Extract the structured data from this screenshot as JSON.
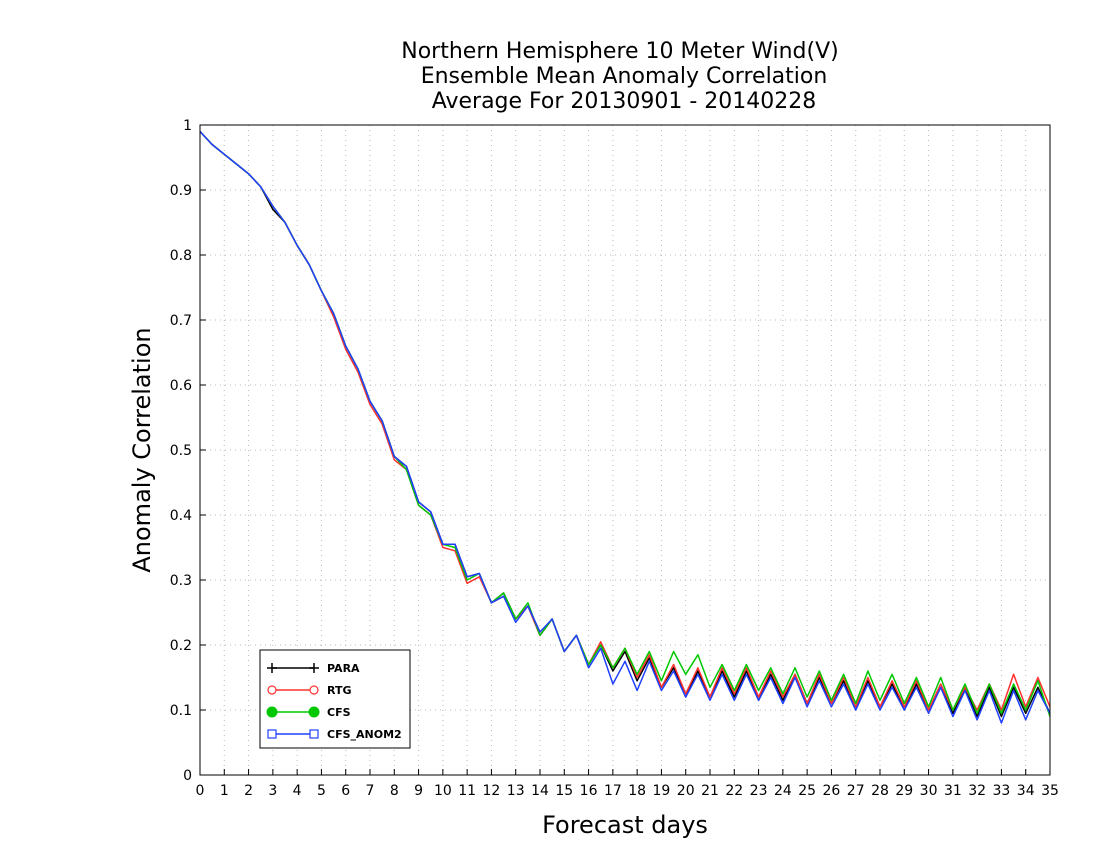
{
  "chart_data": {
    "type": "line",
    "title": [
      "Northern Hemisphere 10 Meter Wind(V)",
      "Ensemble Mean Anomaly Correlation",
      "Average For 20130901 - 20140228"
    ],
    "xlabel": "Forecast days",
    "ylabel": "Anomaly Correlation",
    "xlim": [
      0,
      35
    ],
    "ylim": [
      0,
      1
    ],
    "xticks": [
      "0",
      "1",
      "2",
      "3",
      "4",
      "5",
      "6",
      "7",
      "8",
      "9",
      "10",
      "11",
      "12",
      "13",
      "14",
      "15",
      "16",
      "17",
      "18",
      "19",
      "20",
      "21",
      "22",
      "23",
      "24",
      "25",
      "26",
      "27",
      "28",
      "29",
      "30",
      "31",
      "32",
      "33",
      "34",
      "35"
    ],
    "yticks": [
      "0",
      "0.1",
      "0.2",
      "0.3",
      "0.4",
      "0.5",
      "0.6",
      "0.7",
      "0.8",
      "0.9",
      "1"
    ],
    "grid": true,
    "legend_position": "bottom-left",
    "x": [
      0,
      0.5,
      1,
      1.5,
      2,
      2.5,
      3,
      3.5,
      4,
      4.5,
      5,
      5.5,
      6,
      6.5,
      7,
      7.5,
      8,
      8.5,
      9,
      9.5,
      10,
      10.5,
      11,
      11.5,
      12,
      12.5,
      13,
      13.5,
      14,
      14.5,
      15,
      15.5,
      16,
      16.5,
      17,
      17.5,
      18,
      18.5,
      19,
      19.5,
      20,
      20.5,
      21,
      21.5,
      22,
      22.5,
      23,
      23.5,
      24,
      24.5,
      25,
      25.5,
      26,
      26.5,
      27,
      27.5,
      28,
      28.5,
      29,
      29.5,
      30,
      30.5,
      31,
      31.5,
      32,
      32.5,
      33,
      33.5,
      34,
      34.5,
      35
    ],
    "series": [
      {
        "name": "PARA",
        "color": "#000000",
        "marker": "plus",
        "values": [
          0.99,
          0.97,
          0.955,
          0.94,
          0.925,
          0.905,
          0.87,
          0.85,
          0.815,
          0.785,
          0.745,
          0.71,
          0.66,
          0.625,
          0.575,
          0.545,
          0.49,
          0.475,
          0.42,
          0.405,
          0.355,
          0.355,
          0.305,
          0.31,
          0.265,
          0.28,
          0.24,
          0.26,
          0.215,
          0.24,
          0.19,
          0.215,
          0.17,
          0.2,
          0.16,
          0.19,
          0.145,
          0.18,
          0.135,
          0.165,
          0.12,
          0.16,
          0.12,
          0.16,
          0.12,
          0.16,
          0.115,
          0.155,
          0.115,
          0.155,
          0.11,
          0.15,
          0.11,
          0.145,
          0.1,
          0.145,
          0.105,
          0.14,
          0.1,
          0.14,
          0.1,
          0.135,
          0.095,
          0.135,
          0.09,
          0.135,
          0.09,
          0.135,
          0.095,
          0.135,
          0.095
        ]
      },
      {
        "name": "RTG",
        "color": "#ff3030",
        "marker": "circle-open",
        "values": [
          0.99,
          0.97,
          0.955,
          0.94,
          0.925,
          0.905,
          0.875,
          0.85,
          0.815,
          0.785,
          0.745,
          0.705,
          0.655,
          0.62,
          0.57,
          0.54,
          0.485,
          0.47,
          0.415,
          0.4,
          0.35,
          0.345,
          0.295,
          0.305,
          0.265,
          0.275,
          0.24,
          0.26,
          0.215,
          0.24,
          0.19,
          0.215,
          0.17,
          0.205,
          0.165,
          0.195,
          0.15,
          0.185,
          0.135,
          0.17,
          0.125,
          0.165,
          0.12,
          0.165,
          0.125,
          0.165,
          0.12,
          0.16,
          0.12,
          0.155,
          0.11,
          0.155,
          0.11,
          0.15,
          0.105,
          0.15,
          0.105,
          0.145,
          0.105,
          0.145,
          0.1,
          0.14,
          0.1,
          0.135,
          0.1,
          0.14,
          0.1,
          0.155,
          0.105,
          0.15,
          0.105
        ]
      },
      {
        "name": "CFS",
        "color": "#00c800",
        "marker": "circle-filled",
        "values": [
          0.99,
          0.97,
          0.955,
          0.94,
          0.925,
          0.905,
          0.875,
          0.85,
          0.815,
          0.785,
          0.745,
          0.71,
          0.66,
          0.625,
          0.575,
          0.545,
          0.49,
          0.47,
          0.415,
          0.4,
          0.355,
          0.35,
          0.3,
          0.31,
          0.265,
          0.28,
          0.24,
          0.265,
          0.215,
          0.24,
          0.19,
          0.215,
          0.17,
          0.2,
          0.165,
          0.195,
          0.155,
          0.19,
          0.145,
          0.19,
          0.155,
          0.185,
          0.135,
          0.17,
          0.13,
          0.17,
          0.13,
          0.165,
          0.125,
          0.165,
          0.12,
          0.16,
          0.115,
          0.155,
          0.11,
          0.16,
          0.115,
          0.155,
          0.11,
          0.15,
          0.105,
          0.15,
          0.1,
          0.14,
          0.095,
          0.14,
          0.095,
          0.14,
          0.1,
          0.145,
          0.09
        ]
      },
      {
        "name": "CFS_ANOM2",
        "color": "#2040ff",
        "marker": "square-open",
        "values": [
          0.99,
          0.97,
          0.955,
          0.94,
          0.925,
          0.905,
          0.875,
          0.85,
          0.815,
          0.785,
          0.745,
          0.71,
          0.66,
          0.625,
          0.575,
          0.545,
          0.49,
          0.475,
          0.42,
          0.405,
          0.355,
          0.355,
          0.305,
          0.31,
          0.265,
          0.275,
          0.235,
          0.26,
          0.22,
          0.24,
          0.19,
          0.215,
          0.165,
          0.195,
          0.14,
          0.175,
          0.13,
          0.175,
          0.13,
          0.16,
          0.12,
          0.155,
          0.115,
          0.155,
          0.115,
          0.155,
          0.115,
          0.15,
          0.11,
          0.15,
          0.105,
          0.145,
          0.105,
          0.14,
          0.1,
          0.14,
          0.1,
          0.135,
          0.1,
          0.135,
          0.095,
          0.135,
          0.09,
          0.13,
          0.085,
          0.13,
          0.08,
          0.13,
          0.085,
          0.13,
          0.095
        ]
      }
    ]
  }
}
